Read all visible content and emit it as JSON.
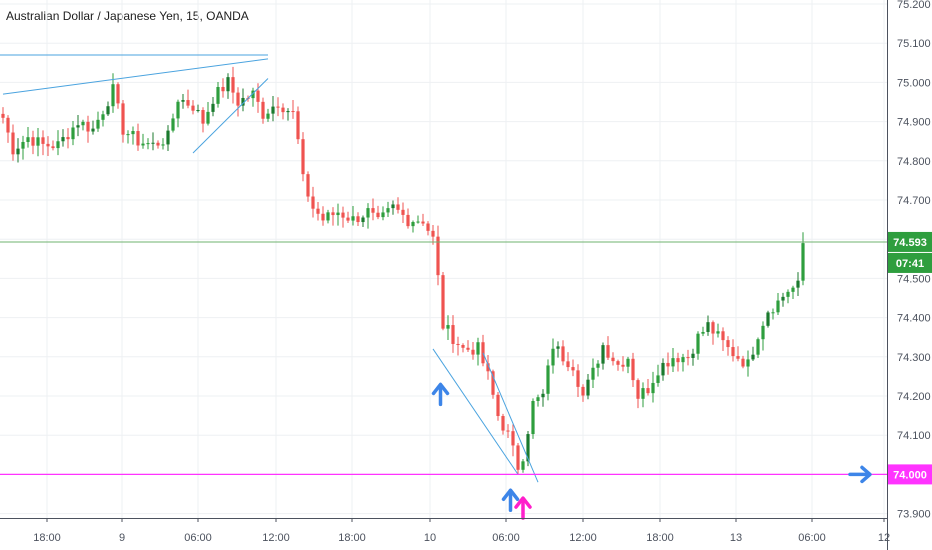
{
  "chart_data": {
    "type": "candlestick",
    "title": "Australian Dollar / Japanese Yen, 15, OANDA",
    "ylim": [
      73.9,
      75.2
    ],
    "y_ticks": [
      "75.200",
      "75.100",
      "75.000",
      "74.900",
      "74.800",
      "74.700",
      "74.600",
      "74.500",
      "74.400",
      "74.300",
      "74.200",
      "74.100",
      "74.000",
      "73.900"
    ],
    "x_ticks": [
      "18:00",
      "9",
      "06:00",
      "12:00",
      "18:00",
      "10",
      "06:00",
      "12:00",
      "18:00",
      "13",
      "06:00",
      "12"
    ],
    "last_price": "74.593",
    "countdown": "07:41",
    "support_level": "74.000",
    "support_value": 74.0,
    "last_value": 74.593,
    "colors": {
      "up": "#26a69a",
      "up_dark": "#1b7a2e",
      "down": "#ef5350",
      "trend": "#4aa3df",
      "support": "#ff33ff",
      "last": "#6fb36f",
      "arrow_blue": "#3d85e8",
      "arrow_magenta": "#ff1fcb"
    },
    "trendlines": [
      {
        "from": [
          0,
          74.97
        ],
        "to": [
          53,
          75.06
        ]
      },
      {
        "from": [
          -3,
          75.07
        ],
        "to": [
          53,
          75.07
        ]
      },
      {
        "from": [
          38,
          74.82
        ],
        "to": [
          53,
          75.01
        ]
      },
      {
        "from": [
          86,
          74.32
        ],
        "to": [
          103,
          74.0
        ]
      },
      {
        "from": [
          96,
          74.31
        ],
        "to": [
          107,
          73.98
        ]
      }
    ],
    "arrows": [
      {
        "index": 87.5,
        "price": 74.25,
        "color": "blue"
      },
      {
        "index": 101.5,
        "price": 73.98,
        "color": "blue"
      },
      {
        "index": 104,
        "price": 73.96,
        "color": "magenta"
      }
    ],
    "right_arrow": {
      "price": 74.0
    },
    "anchors": [
      [
        0,
        74.91
      ],
      [
        2,
        74.83
      ],
      [
        5,
        74.86
      ],
      [
        8,
        74.84
      ],
      [
        11,
        74.84
      ],
      [
        15,
        74.9
      ],
      [
        18,
        74.88
      ],
      [
        22,
        74.98
      ],
      [
        24,
        74.88
      ],
      [
        27,
        74.85
      ],
      [
        30,
        74.84
      ],
      [
        33,
        74.86
      ],
      [
        35,
        74.96
      ],
      [
        38,
        74.94
      ],
      [
        40,
        74.9
      ],
      [
        42,
        74.96
      ],
      [
        45,
        75.0
      ],
      [
        47,
        74.95
      ],
      [
        50,
        74.97
      ],
      [
        52,
        74.92
      ],
      [
        55,
        74.95
      ],
      [
        58,
        74.92
      ],
      [
        59,
        74.85
      ],
      [
        60,
        74.75
      ],
      [
        62,
        74.68
      ],
      [
        64,
        74.65
      ],
      [
        67,
        74.67
      ],
      [
        70,
        74.65
      ],
      [
        73,
        74.67
      ],
      [
        75,
        74.64
      ],
      [
        78,
        74.68
      ],
      [
        81,
        74.65
      ],
      [
        84,
        74.65
      ],
      [
        86,
        74.6
      ],
      [
        87,
        74.5
      ],
      [
        88,
        74.38
      ],
      [
        90,
        74.35
      ],
      [
        92,
        74.32
      ],
      [
        95,
        74.32
      ],
      [
        97,
        74.25
      ],
      [
        99,
        74.15
      ],
      [
        101,
        74.1
      ],
      [
        103,
        74.02
      ],
      [
        104,
        74.05
      ],
      [
        106,
        74.18
      ],
      [
        108,
        74.2
      ],
      [
        110,
        74.33
      ],
      [
        112,
        74.3
      ],
      [
        114,
        74.28
      ],
      [
        116,
        74.2
      ],
      [
        118,
        74.26
      ],
      [
        120,
        74.33
      ],
      [
        123,
        74.28
      ],
      [
        125,
        74.3
      ],
      [
        127,
        74.2
      ],
      [
        129,
        74.22
      ],
      [
        131,
        74.27
      ],
      [
        134,
        74.3
      ],
      [
        137,
        74.3
      ],
      [
        139,
        74.35
      ],
      [
        141,
        74.38
      ],
      [
        143,
        74.35
      ],
      [
        145,
        74.32
      ],
      [
        147,
        74.3
      ],
      [
        149,
        74.28
      ],
      [
        151,
        74.36
      ],
      [
        153,
        74.42
      ],
      [
        155,
        74.44
      ],
      [
        157,
        74.47
      ],
      [
        159,
        74.48
      ],
      [
        160,
        74.59
      ]
    ]
  }
}
